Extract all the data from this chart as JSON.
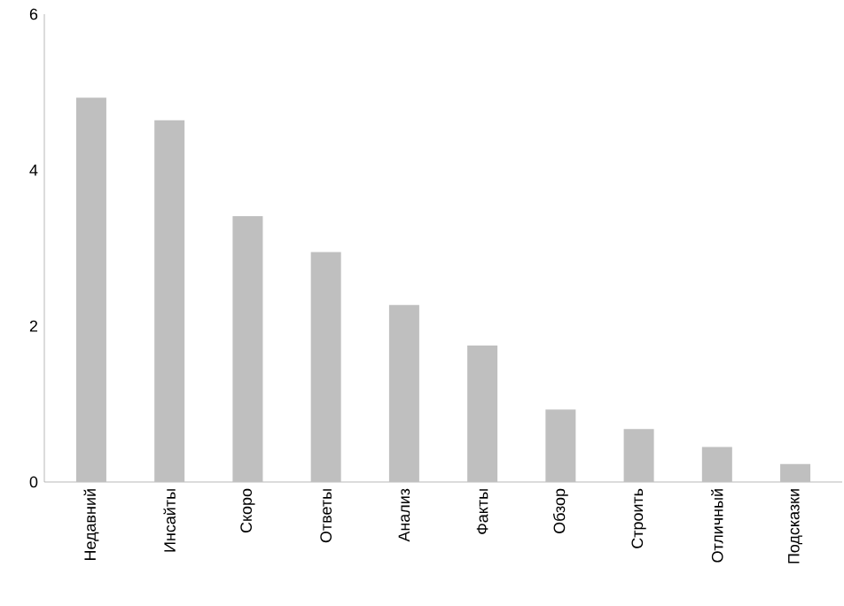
{
  "chart_data": {
    "type": "bar",
    "categories": [
      "Недавний",
      "Инсайты",
      "Скоро",
      "Ответы",
      "Анализ",
      "Факты",
      "Обзор",
      "Строить",
      "Отличный",
      "Подсказки"
    ],
    "values": [
      4.93,
      4.64,
      3.41,
      2.95,
      2.27,
      1.75,
      0.93,
      0.68,
      0.45,
      0.23
    ],
    "color": "#bfbfbf",
    "ylim": [
      0,
      6
    ],
    "yticks": [
      0,
      2,
      4,
      6
    ],
    "grid": false
  }
}
